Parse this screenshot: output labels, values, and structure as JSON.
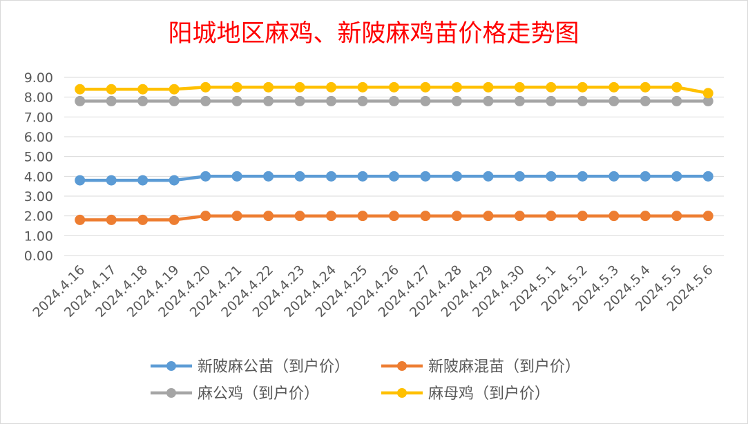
{
  "chart_data": {
    "type": "line",
    "title": "阳城地区麻鸡、新陂麻鸡苗价格走势图",
    "title_color": "#ff0000",
    "categories": [
      "2024.4.16",
      "2024.4.17",
      "2024.4.18",
      "2024.4.19",
      "2024.4.20",
      "2024.4.21",
      "2024.4.22",
      "2024.4.23",
      "2024.4.24",
      "2024.4.25",
      "2024.4.26",
      "2024.4.27",
      "2024.4.28",
      "2024.4.29",
      "2024.4.30",
      "2024.5.1",
      "2024.5.2",
      "2024.5.3",
      "2024.5.4",
      "2024.5.5",
      "2024.5.6"
    ],
    "ylim": [
      0,
      9
    ],
    "yticks": [
      "0.00",
      "1.00",
      "2.00",
      "3.00",
      "4.00",
      "5.00",
      "6.00",
      "7.00",
      "8.00",
      "9.00"
    ],
    "grid": true,
    "legend_position": "bottom",
    "series": [
      {
        "name": "新陂麻公苗（到户价）",
        "color": "#5b9bd5",
        "values": [
          3.8,
          3.8,
          3.8,
          3.8,
          4,
          4,
          4,
          4,
          4,
          4,
          4,
          4,
          4,
          4,
          4,
          4,
          4,
          4,
          4,
          4,
          4
        ]
      },
      {
        "name": "新陂麻混苗（到户价）",
        "color": "#ed7d31",
        "values": [
          1.8,
          1.8,
          1.8,
          1.8,
          2,
          2,
          2,
          2,
          2,
          2,
          2,
          2,
          2,
          2,
          2,
          2,
          2,
          2,
          2,
          2,
          2
        ]
      },
      {
        "name": "麻公鸡（到户价）",
        "color": "#a5a5a5",
        "values": [
          7.8,
          7.8,
          7.8,
          7.8,
          7.8,
          7.8,
          7.8,
          7.8,
          7.8,
          7.8,
          7.8,
          7.8,
          7.8,
          7.8,
          7.8,
          7.8,
          7.8,
          7.8,
          7.8,
          7.8,
          7.8
        ]
      },
      {
        "name": "麻母鸡（到户价）",
        "color": "#ffc000",
        "values": [
          8.4,
          8.4,
          8.4,
          8.4,
          8.5,
          8.5,
          8.5,
          8.5,
          8.5,
          8.5,
          8.5,
          8.5,
          8.5,
          8.5,
          8.5,
          8.5,
          8.5,
          8.5,
          8.5,
          8.5,
          8.2
        ]
      }
    ]
  }
}
